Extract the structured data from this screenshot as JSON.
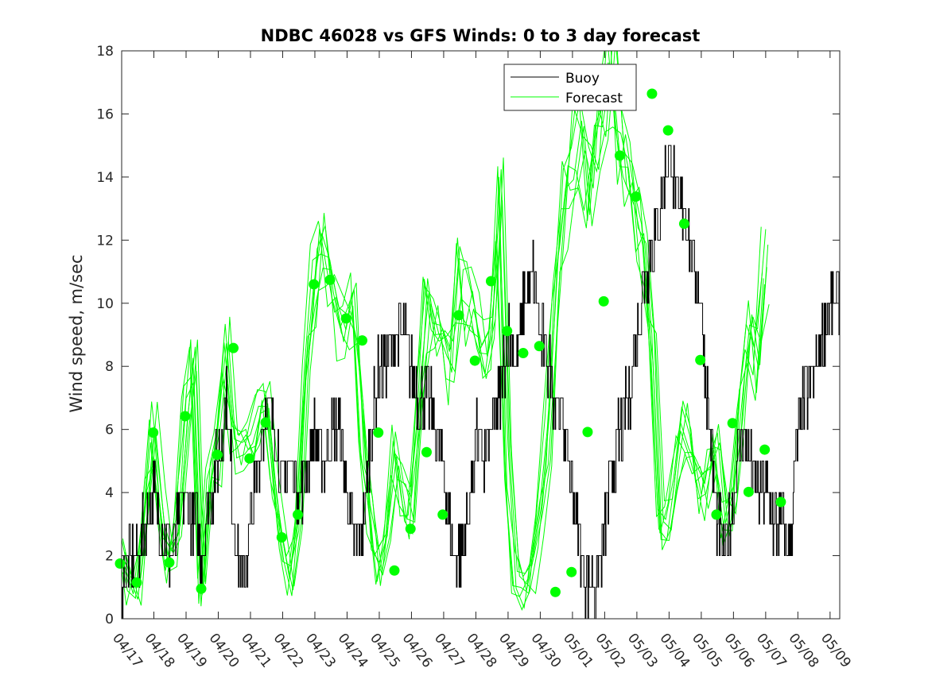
{
  "chart_data": {
    "type": "line",
    "title": "NDBC 46028 vs GFS Winds: 0 to 3 day forecast",
    "xlabel": "",
    "ylabel": "Wind speed, m/sec",
    "ylim": [
      0,
      18
    ],
    "yticks": [
      0,
      2,
      4,
      6,
      8,
      10,
      12,
      14,
      16,
      18
    ],
    "xlim": [
      0,
      22.3
    ],
    "xtick_labels": [
      "04/17",
      "04/18",
      "04/19",
      "04/20",
      "04/21",
      "04/22",
      "04/23",
      "04/24",
      "04/25",
      "04/26",
      "04/27",
      "04/28",
      "04/29",
      "04/30",
      "05/01",
      "05/02",
      "05/03",
      "05/04",
      "05/05",
      "05/06",
      "05/07",
      "05/08",
      "05/09"
    ],
    "legend_position": "top-right",
    "colors": {
      "buoy": "#000000",
      "forecast": "#00ff00",
      "axes": "#262626"
    },
    "series": [
      {
        "name": "Buoy",
        "style": "stepped",
        "points": [
          [
            0,
            1
          ],
          [
            0.25,
            2
          ],
          [
            0.5,
            2
          ],
          [
            0.75,
            3
          ],
          [
            1,
            4
          ],
          [
            1.25,
            3
          ],
          [
            1.5,
            2
          ],
          [
            1.75,
            3
          ],
          [
            2,
            4
          ],
          [
            2.25,
            3
          ],
          [
            2.5,
            2
          ],
          [
            2.75,
            4
          ],
          [
            3,
            5
          ],
          [
            3.25,
            7
          ],
          [
            3.5,
            3
          ],
          [
            3.75,
            1
          ],
          [
            4,
            3
          ],
          [
            4.25,
            5
          ],
          [
            4.5,
            7
          ],
          [
            4.75,
            6
          ],
          [
            5,
            4
          ],
          [
            5.25,
            5
          ],
          [
            5.5,
            4
          ],
          [
            5.75,
            5
          ],
          [
            6,
            6
          ],
          [
            6.25,
            5
          ],
          [
            6.5,
            6
          ],
          [
            6.75,
            6
          ],
          [
            7,
            4
          ],
          [
            7.25,
            2
          ],
          [
            7.5,
            3
          ],
          [
            7.75,
            6
          ],
          [
            8,
            8
          ],
          [
            8.25,
            8
          ],
          [
            8.5,
            9
          ],
          [
            8.75,
            9
          ],
          [
            9,
            8
          ],
          [
            9.25,
            7
          ],
          [
            9.5,
            7
          ],
          [
            9.75,
            6
          ],
          [
            10,
            5
          ],
          [
            10.25,
            2
          ],
          [
            10.5,
            2
          ],
          [
            10.75,
            3
          ],
          [
            11,
            6
          ],
          [
            11.25,
            5
          ],
          [
            11.5,
            6
          ],
          [
            11.75,
            7
          ],
          [
            12,
            9
          ],
          [
            12.25,
            8
          ],
          [
            12.5,
            10
          ],
          [
            12.75,
            11
          ],
          [
            13,
            9
          ],
          [
            13.25,
            8
          ],
          [
            13.5,
            7
          ],
          [
            13.75,
            6
          ],
          [
            14,
            4
          ],
          [
            14.25,
            2
          ],
          [
            14.5,
            1
          ],
          [
            14.75,
            1
          ],
          [
            15,
            3
          ],
          [
            15.25,
            5
          ],
          [
            15.5,
            6
          ],
          [
            15.75,
            7
          ],
          [
            16,
            9
          ],
          [
            16.25,
            11
          ],
          [
            16.5,
            12
          ],
          [
            16.75,
            13
          ],
          [
            17,
            15
          ],
          [
            17.25,
            13
          ],
          [
            17.5,
            13
          ],
          [
            17.75,
            11
          ],
          [
            18,
            10
          ],
          [
            18.25,
            6
          ],
          [
            18.5,
            3
          ],
          [
            18.75,
            2
          ],
          [
            19,
            4
          ],
          [
            19.25,
            6
          ],
          [
            19.5,
            5
          ],
          [
            19.75,
            4
          ],
          [
            20,
            4
          ],
          [
            20.25,
            3
          ],
          [
            20.5,
            3
          ],
          [
            20.75,
            2
          ],
          [
            21,
            6
          ],
          [
            21.25,
            7
          ],
          [
            21.5,
            8
          ],
          [
            21.75,
            9
          ],
          [
            22,
            10
          ],
          [
            22.3,
            10
          ]
        ]
      },
      {
        "name": "Forecast",
        "style": "ensemble",
        "points": [
          [
            0,
            1.8
          ],
          [
            0.25,
            1
          ],
          [
            0.5,
            1.1
          ],
          [
            0.75,
            3.5
          ],
          [
            1,
            5.8
          ],
          [
            1.25,
            3.5
          ],
          [
            1.5,
            1.8
          ],
          [
            1.75,
            2.5
          ],
          [
            2,
            6.4
          ],
          [
            2.25,
            8.5
          ],
          [
            2.5,
            1
          ],
          [
            2.75,
            4.5
          ],
          [
            3,
            5.2
          ],
          [
            3.25,
            8.6
          ],
          [
            3.5,
            5.5
          ],
          [
            3.75,
            5
          ],
          [
            4,
            5.4
          ],
          [
            4.25,
            6.2
          ],
          [
            4.5,
            6.5
          ],
          [
            4.75,
            4.5
          ],
          [
            5,
            2.6
          ],
          [
            5.25,
            1.5
          ],
          [
            5.5,
            3.3
          ],
          [
            5.75,
            8
          ],
          [
            6,
            10.6
          ],
          [
            6.25,
            12
          ],
          [
            6.5,
            10.7
          ],
          [
            6.75,
            9.5
          ],
          [
            7,
            8.8
          ],
          [
            7.25,
            9.8
          ],
          [
            7.5,
            5.9
          ],
          [
            7.75,
            3
          ],
          [
            8,
            1.5
          ],
          [
            8.25,
            2.8
          ],
          [
            8.5,
            5.3
          ],
          [
            8.75,
            4
          ],
          [
            9,
            3.3
          ],
          [
            9.25,
            7
          ],
          [
            9.5,
            9.6
          ],
          [
            9.75,
            9
          ],
          [
            10,
            8.2
          ],
          [
            10.25,
            8
          ],
          [
            10.5,
            10.7
          ],
          [
            10.75,
            10
          ],
          [
            11,
            9.1
          ],
          [
            11.25,
            8.4
          ],
          [
            11.5,
            8.6
          ],
          [
            11.75,
            13
          ],
          [
            12,
            5
          ],
          [
            12.25,
            1.5
          ],
          [
            12.5,
            0.9
          ],
          [
            12.75,
            1.5
          ],
          [
            13,
            3
          ],
          [
            13.25,
            5.9
          ],
          [
            13.5,
            10
          ],
          [
            13.75,
            13
          ],
          [
            14,
            14.7
          ],
          [
            14.25,
            15
          ],
          [
            14.5,
            13.4
          ],
          [
            14.75,
            15
          ],
          [
            15,
            16.6
          ],
          [
            15.25,
            17.5
          ],
          [
            15.5,
            15.5
          ],
          [
            15.75,
            14
          ],
          [
            16,
            12.5
          ],
          [
            16.25,
            11
          ],
          [
            16.5,
            8.2
          ],
          [
            16.75,
            3
          ],
          [
            17,
            3.3
          ],
          [
            17.25,
            5
          ],
          [
            17.5,
            6.2
          ],
          [
            17.75,
            5
          ],
          [
            18,
            4
          ],
          [
            18.25,
            4.5
          ],
          [
            18.5,
            5.4
          ],
          [
            18.75,
            3
          ],
          [
            19,
            3.7
          ],
          [
            19.25,
            7
          ],
          [
            19.5,
            9
          ],
          [
            19.75,
            8
          ],
          [
            20,
            11.5
          ]
        ]
      },
      {
        "name": "",
        "style": "markers",
        "points": [
          [
            -0.05,
            1.75
          ],
          [
            0.47,
            1.15
          ],
          [
            0.98,
            5.9
          ],
          [
            1.48,
            1.78
          ],
          [
            1.97,
            6.42
          ],
          [
            2.47,
            0.95
          ],
          [
            2.97,
            5.2
          ],
          [
            3.47,
            8.58
          ],
          [
            3.97,
            5.08
          ],
          [
            4.47,
            6.22
          ],
          [
            4.97,
            2.58
          ],
          [
            5.47,
            3.3
          ],
          [
            5.97,
            10.6
          ],
          [
            6.47,
            10.74
          ],
          [
            6.97,
            9.52
          ],
          [
            7.47,
            8.82
          ],
          [
            7.97,
            5.9
          ],
          [
            8.47,
            1.53
          ],
          [
            8.97,
            2.85
          ],
          [
            9.47,
            5.28
          ],
          [
            9.97,
            3.3
          ],
          [
            10.47,
            9.62
          ],
          [
            10.97,
            8.18
          ],
          [
            11.47,
            10.7
          ],
          [
            11.97,
            9.12
          ],
          [
            12.47,
            8.42
          ],
          [
            12.97,
            8.64
          ],
          [
            13.47,
            0.85
          ],
          [
            13.97,
            1.48
          ],
          [
            14.47,
            5.92
          ],
          [
            14.97,
            10.06
          ],
          [
            15.47,
            14.68
          ],
          [
            15.97,
            13.38
          ],
          [
            16.47,
            16.64
          ],
          [
            16.97,
            15.48
          ],
          [
            17.47,
            12.52
          ],
          [
            17.97,
            8.2
          ],
          [
            18.47,
            3.3
          ],
          [
            18.97,
            6.2
          ],
          [
            19.47,
            4.02
          ],
          [
            19.97,
            5.36
          ],
          [
            20.47,
            3.7
          ]
        ]
      }
    ]
  }
}
